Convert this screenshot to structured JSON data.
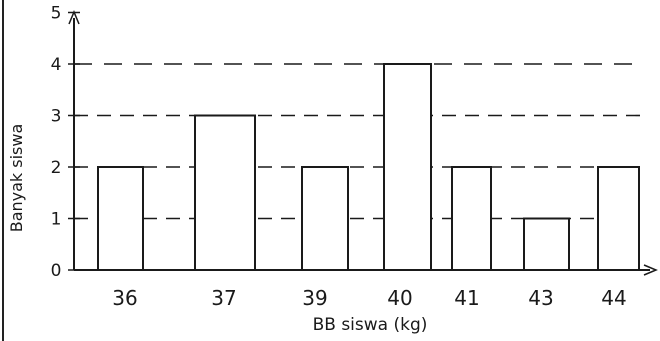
{
  "chart_data": {
    "type": "bar",
    "categories": [
      "36",
      "37",
      "39",
      "40",
      "41",
      "43",
      "44"
    ],
    "values": [
      2,
      3,
      2,
      4,
      2,
      1,
      2
    ],
    "title": "",
    "xlabel": "BB siswa (kg)",
    "ylabel": "Banyak siswa",
    "ylim": [
      0,
      5
    ],
    "yticks": [
      "0",
      "1",
      "2",
      "3",
      "4",
      "5"
    ],
    "grid": "dashed horizontal reference lines at bar heights",
    "colors": {
      "ink": "#1a1a1a",
      "bar_fill": "#ffffff"
    }
  }
}
